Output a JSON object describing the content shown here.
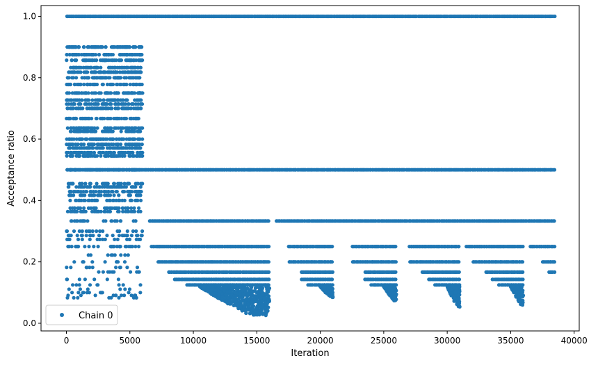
{
  "chart_data": {
    "type": "scatter",
    "xlabel": "Iteration",
    "ylabel": "Acceptance ratio",
    "xlim": [
      -2000,
      40400
    ],
    "ylim": [
      -0.025,
      1.035
    ],
    "x_ticks": [
      0,
      5000,
      10000,
      15000,
      20000,
      25000,
      30000,
      35000,
      40000
    ],
    "x_tick_labels": [
      "0",
      "5000",
      "10000",
      "15000",
      "20000",
      "25000",
      "30000",
      "35000",
      "40000"
    ],
    "y_ticks": [
      0.0,
      0.2,
      0.4,
      0.6,
      0.8,
      1.0
    ],
    "y_tick_labels": [
      "0.0",
      "0.2",
      "0.4",
      "0.6",
      "0.8",
      "1.0"
    ],
    "grid": false,
    "legend": {
      "position": "bottom-left",
      "entries": [
        "Chain 0"
      ]
    },
    "color": "#1f77b4",
    "series": [
      {
        "name": "Chain 0",
        "marker": "circle",
        "levels": [
          {
            "y": 1.0,
            "ranges": [
              [
                0,
                38500
              ]
            ]
          },
          {
            "y": 0.5,
            "ranges": [
              [
                0,
                38500
              ]
            ]
          },
          {
            "y": 0.333,
            "ranges": [
              [
                6500,
                16000
              ],
              [
                16500,
                38500
              ]
            ]
          },
          {
            "y": 0.25,
            "ranges": [
              [
                6700,
                16000
              ],
              [
                17500,
                21000
              ],
              [
                22500,
                26000
              ],
              [
                27000,
                31000
              ],
              [
                31500,
                36000
              ],
              [
                36500,
                38500
              ]
            ]
          },
          {
            "y": 0.2,
            "ranges": [
              [
                7200,
                16000
              ],
              [
                17500,
                21000
              ],
              [
                22500,
                26000
              ],
              [
                27000,
                31000
              ],
              [
                32000,
                36000
              ],
              [
                37500,
                38500
              ]
            ]
          },
          {
            "y": 0.1667,
            "ranges": [
              [
                8000,
                16000
              ],
              [
                18500,
                21000
              ],
              [
                23500,
                26000
              ],
              [
                28000,
                31000
              ],
              [
                33000,
                36000
              ],
              [
                38000,
                38500
              ]
            ]
          },
          {
            "y": 0.1429,
            "ranges": [
              [
                8500,
                16000
              ],
              [
                18500,
                21000
              ],
              [
                23500,
                26000
              ],
              [
                28500,
                31000
              ],
              [
                33500,
                36000
              ]
            ]
          },
          {
            "y": 0.125,
            "ranges": [
              [
                9500,
                16000
              ],
              [
                19000,
                21000
              ],
              [
                24000,
                26000
              ],
              [
                29000,
                31000
              ],
              [
                34000,
                36000
              ]
            ]
          }
        ],
        "early_phase": {
          "x_range": [
            0,
            6000
          ],
          "levels": [
            0.9,
            0.875,
            0.857,
            0.833,
            0.818,
            0.8,
            0.778,
            0.75,
            0.727,
            0.714,
            0.7,
            0.667,
            0.636,
            0.625,
            0.6,
            0.583,
            0.571,
            0.556,
            0.545,
            0.5,
            0.455,
            0.444,
            0.429,
            0.417,
            0.4,
            0.375,
            0.364,
            0.333,
            0.3,
            0.286,
            0.273,
            0.25,
            0.222,
            0.2,
            0.182,
            0.167,
            0.143,
            0.125,
            0.111,
            0.1,
            0.091,
            0.083
          ]
        },
        "low_tail": {
          "segments": [
            {
              "x_range": [
                10500,
                16000
              ],
              "y_min": 0.025,
              "y_max": 0.12,
              "peak_x": 14500
            },
            {
              "x_range": [
                20000,
                21000
              ],
              "y_min": 0.083,
              "y_max": 0.12,
              "peak_x": 20800
            },
            {
              "x_range": [
                25000,
                26000
              ],
              "y_min": 0.071,
              "y_max": 0.12,
              "peak_x": 25800
            },
            {
              "x_range": [
                30000,
                31000
              ],
              "y_min": 0.05,
              "y_max": 0.12,
              "peak_x": 30800
            },
            {
              "x_range": [
                35000,
                36000
              ],
              "y_min": 0.059,
              "y_max": 0.12,
              "peak_x": 35800
            }
          ]
        }
      }
    ]
  }
}
